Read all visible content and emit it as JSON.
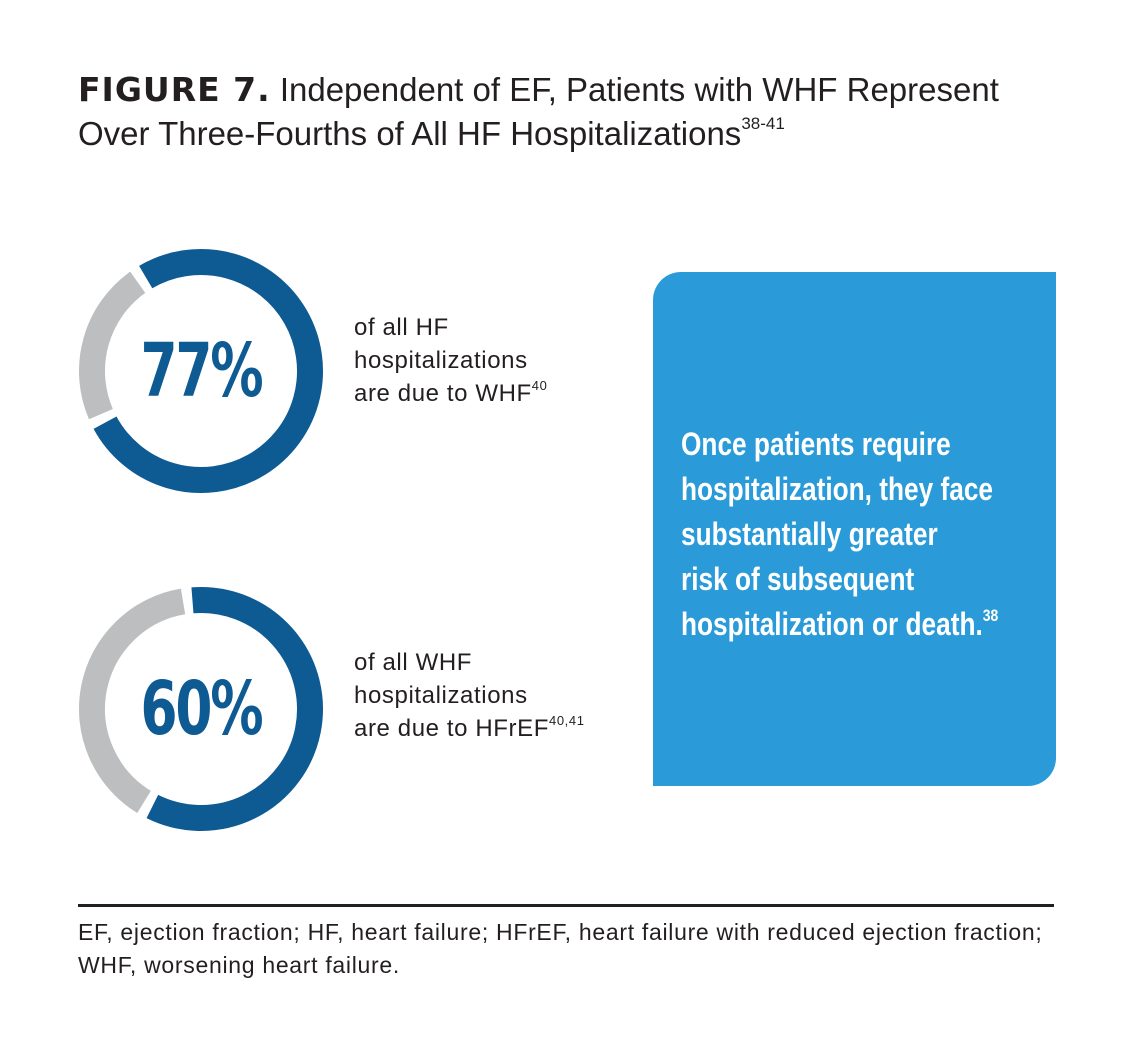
{
  "title": {
    "label": "FIGURE 7.",
    "text": "Independent of EF, Patients with WHF Represent Over Three-Fourths of All HF Hospitalizations",
    "refs": "38-41"
  },
  "colors": {
    "primary": "#0e5a92",
    "remainder": "#bcbec0",
    "callout": "#2a9bd8"
  },
  "chart_data": [
    {
      "type": "pie",
      "value_label": "77%",
      "values": [
        77,
        23
      ],
      "caption_line1": "of all HF",
      "caption_line2": "hospitalizations",
      "caption_line3": "are due to WHF",
      "caption_refs": "40"
    },
    {
      "type": "pie",
      "value_label": "60%",
      "values": [
        60,
        40
      ],
      "caption_line1": "of all WHF",
      "caption_line2": "hospitalizations",
      "caption_line3": "are due to HFrEF",
      "caption_refs": "40,41"
    }
  ],
  "callout": {
    "text": "Once patients require\nhospitalization, they face\nsubstantially greater\nrisk of subsequent\nhospitalization or death.",
    "refs": "38"
  },
  "footnote": "EF, ejection fraction; HF, heart failure; HFrEF, heart failure with reduced ejection fraction; WHF, worsening heart failure."
}
